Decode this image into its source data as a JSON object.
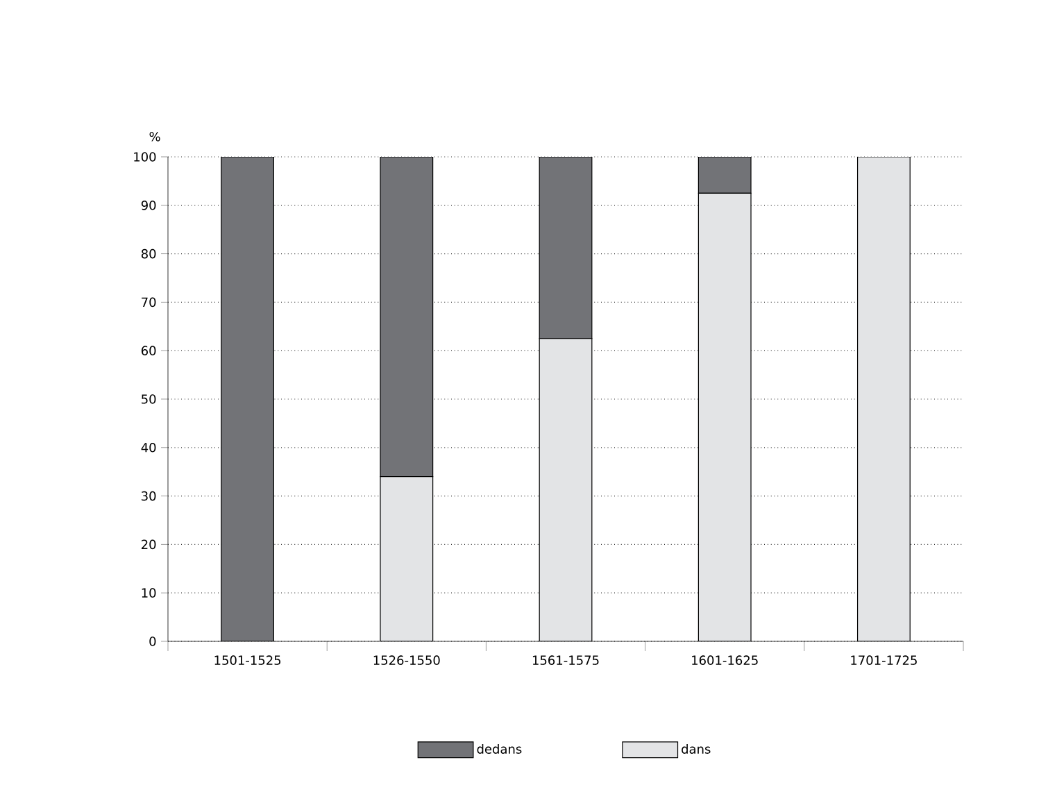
{
  "chart_data": {
    "type": "bar",
    "stacked": true,
    "ylabel": "%",
    "categories": [
      "1501-1525",
      "1526-1550",
      "1561-1575",
      "1601-1625",
      "1701-1725"
    ],
    "series": [
      {
        "name": "dans",
        "color": "#e3e4e6",
        "values": [
          0,
          34,
          62.5,
          92.5,
          100
        ]
      },
      {
        "name": "dedans",
        "color": "#727377",
        "values": [
          100,
          66,
          37.5,
          7.5,
          0
        ]
      }
    ],
    "ylim": [
      0,
      100
    ],
    "yticks": [
      0,
      10,
      20,
      30,
      40,
      50,
      60,
      70,
      80,
      90,
      100
    ],
    "grid": "y",
    "legend": "bottom"
  }
}
